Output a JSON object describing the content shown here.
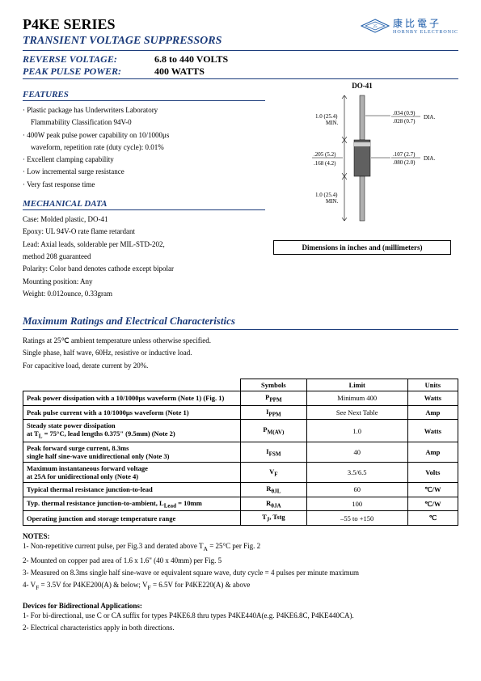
{
  "header": {
    "title": "P4KE SERIES",
    "subtitle": "TRANSIENT VOLTAGE SUPPRESSORS",
    "reverse_voltage_label": "REVERSE VOLTAGE:",
    "reverse_voltage_value": "6.8 to 440 VOLTS",
    "peak_pulse_label": "PEAK PULSE POWER:",
    "peak_pulse_value": "400 WATTS",
    "logo_cn": "康比電子",
    "logo_sub": "HORNBY ELECTRONIC"
  },
  "features": {
    "heading": "FEATURES",
    "items": [
      "Plastic package has Underwriters Laboratory",
      "  Flammability Classification 94V-0",
      "400W peak pulse power capability on 10/1000μs",
      "  waveform, repetition rate (duty cycle): 0.01%",
      "Excellent clamping capability",
      "Low incremental surge resistance",
      "Very fast response time"
    ]
  },
  "mechanical": {
    "heading": "MECHANICAL DATA",
    "lines": [
      "Case: Molded plastic, DO-41",
      "Epoxy: UL 94V-O rate flame retardant",
      "Lead: Axial leads, solderable per MIL-STD-202,",
      "method 208 guaranteed",
      "Polarity: Color band denotes cathode except bipolar",
      "Mounting position: Any",
      "Weight: 0.012ounce, 0.33gram"
    ]
  },
  "package": {
    "label": "DO-41",
    "caption": "Dimensions in inches and (millimeters)",
    "dims": {
      "lead_len": "1.0 (25.4) MIN.",
      "lead_dia_top": ".034 (0.9)",
      "lead_dia_bot": ".028 (0.7)",
      "body_len_top": ".205 (5.2)",
      "body_len_bot": ".168 (4.2)",
      "body_dia_top": ".107 (2.7)",
      "body_dia_bot": ".080 (2.0)",
      "dia_label": "DIA."
    }
  },
  "max_ratings": {
    "heading": "Maximum Ratings and Electrical Characteristics",
    "intro": [
      "Ratings at 25℃ ambient temperature unless otherwise specified.",
      "Single phase, half wave, 60Hz, resistive or inductive load.",
      "For capacitive load, derate current by 20%."
    ],
    "columns": [
      "",
      "Symbols",
      "Limit",
      "Units"
    ],
    "rows": [
      {
        "param": "Peak power dissipation with a 10/1000μs waveform (Note 1) (Fig. 1)",
        "symbol": "P<sub>PPM</sub>",
        "limit": "Minimum 400",
        "unit": "Watts"
      },
      {
        "param": "Peak pulse current with a 10/1000μs waveform (Note 1)",
        "symbol": "I<sub>PPM</sub>",
        "limit": "See Next Table",
        "unit": "Amp"
      },
      {
        "param": "Steady state power dissipation<br>at T<sub>L</sub> = 75°C, lead lengths 0.375\" (9.5mm) (Note 2)",
        "symbol": "P<sub>M(AV)</sub>",
        "limit": "1.0",
        "unit": "Watts"
      },
      {
        "param": "Peak forward surge current, 8.3ms<br>single half sine-wave unidirectional only (Note 3)",
        "symbol": "I<sub>FSM</sub>",
        "limit": "40",
        "unit": "Amp"
      },
      {
        "param": "Maximum instantaneous forward voltage<br>at 25A for unidirectional only (Note 4)",
        "symbol": "V<sub>F</sub>",
        "limit": "3.5/6.5",
        "unit": "Volts"
      },
      {
        "param": "Typical thermal resistance junction-to-lead",
        "symbol": "R<sub>θJL</sub>",
        "limit": "60",
        "unit": "℃/W"
      },
      {
        "param": "Typ. thermal resistance junction-to-ambient, L<sub>Lead</sub> = 10mm",
        "symbol": "R<sub>θJA</sub>",
        "limit": "100",
        "unit": "℃/W"
      },
      {
        "param": "Operating junction and storage temperature range",
        "symbol": "T<sub>J</sub>, Tstg",
        "limit": "–55 to +150",
        "unit": "℃"
      }
    ]
  },
  "notes": {
    "heading": "NOTES:",
    "items": [
      "1- Non-repetitive current pulse, per Fig.3 and derated above T<sub>A</sub> = 25°C per Fig. 2",
      "2- Mounted on copper pad area of 1.6 x 1.6\" (40 x 40mm) per Fig. 5",
      "3- Measured on 8.3ms single half sine-wave or equivalent square wave, duty cycle = 4 pulses per minute maximum",
      "4- V<sub>F</sub> = 3.5V for P4KE200(A) & below; V<sub>F</sub> = 6.5V for P4KE220(A) & above"
    ]
  },
  "bidir": {
    "heading": "Devices for Bidirectional Applications:",
    "items": [
      "1- For bi-directional, use C or CA suffix for types P4KE6.8 thru types P4KE440A(e.g. P4KE6.8C, P4KE440CA).",
      "2- Electrical characteristics apply in both directions."
    ]
  },
  "colors": {
    "accent": "#1a3a7a",
    "logo": "#1a5aa8"
  }
}
